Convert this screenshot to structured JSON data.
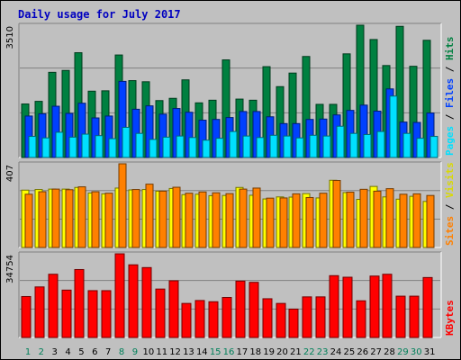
{
  "chart_data": {
    "type": "bar",
    "title": "Daily usage for July 2017",
    "categories": [
      "1",
      "2",
      "3",
      "4",
      "5",
      "6",
      "7",
      "8",
      "9",
      "10",
      "11",
      "12",
      "13",
      "14",
      "15",
      "16",
      "17",
      "18",
      "19",
      "20",
      "21",
      "22",
      "23",
      "24",
      "25",
      "26",
      "27",
      "28",
      "29",
      "30",
      "31"
    ],
    "weekend_days": [
      "1",
      "2",
      "8",
      "9",
      "15",
      "16",
      "22",
      "23",
      "29",
      "30"
    ],
    "grid": true,
    "panels": [
      {
        "name": "requests",
        "ymax_label": "3510",
        "ylim": [
          0,
          3510
        ],
        "gridlines": [
          1170,
          2340
        ],
        "series": [
          {
            "name": "Hits",
            "color": "#008040",
            "values": [
              1420,
              1490,
              2260,
              2310,
              2780,
              1760,
              1770,
              2720,
              2040,
              2010,
              1510,
              1570,
              2060,
              1450,
              1520,
              2590,
              1550,
              1520,
              2410,
              1880,
              2240,
              2680,
              1410,
              1410,
              2750,
              3510,
              3130,
              2440,
              3480,
              2420,
              3110
            ]
          },
          {
            "name": "Files",
            "color": "#0040ff",
            "values": [
              1100,
              1160,
              1360,
              1170,
              1440,
              1050,
              1100,
              2020,
              1280,
              1370,
              1150,
              1300,
              1200,
              990,
              1010,
              1060,
              1220,
              1220,
              1080,
              900,
              900,
              1010,
              1020,
              1130,
              1250,
              1390,
              1230,
              1820,
              940,
              930,
              1180
            ]
          },
          {
            "name": "Pages",
            "color": "#00e0ff",
            "values": [
              560,
              520,
              670,
              540,
              620,
              580,
              500,
              800,
              640,
              480,
              540,
              570,
              530,
              460,
              510,
              690,
              570,
              530,
              590,
              570,
              520,
              590,
              570,
              830,
              640,
              610,
              690,
              1630,
              640,
              510,
              560
            ]
          }
        ]
      },
      {
        "name": "visits",
        "ymax_label": "407",
        "ylim": [
          0,
          407
        ],
        "gridlines": [
          135,
          271
        ],
        "series": [
          {
            "name": "Visits",
            "color": "#ffff00",
            "values": [
              279,
              282,
              284,
              284,
              292,
              265,
              261,
              289,
              280,
              282,
              274,
              287,
              257,
              259,
              252,
              253,
              292,
              254,
              236,
              246,
              245,
              262,
              241,
              327,
              267,
              234,
              297,
              246,
              235,
              249,
              224
            ]
          },
          {
            "name": "Sites",
            "color": "#ff8000",
            "values": [
              259,
              271,
              284,
              281,
              295,
              271,
              264,
              407,
              282,
              308,
              274,
              293,
              264,
              270,
              266,
              262,
              284,
              289,
              240,
              241,
              261,
              243,
              264,
              326,
              269,
              283,
              274,
              286,
              259,
              261,
              253
            ]
          }
        ]
      },
      {
        "name": "traffic",
        "ymax_label": "34754",
        "ylim": [
          0,
          34754
        ],
        "gridlines": [
          11585,
          23170
        ],
        "series": [
          {
            "name": "KBytes",
            "color": "#ff0000",
            "values": [
              17010,
              21000,
              26260,
              19680,
              28220,
              19450,
              19450,
              34750,
              30180,
              29030,
              20120,
              23550,
              14150,
              15360,
              14850,
              16620,
              23420,
              22910,
              16090,
              14150,
              11790,
              16870,
              16870,
              25680,
              25030,
              15240,
              25510,
              26260,
              17160,
              17160,
              24900
            ]
          }
        ]
      }
    ]
  }
}
